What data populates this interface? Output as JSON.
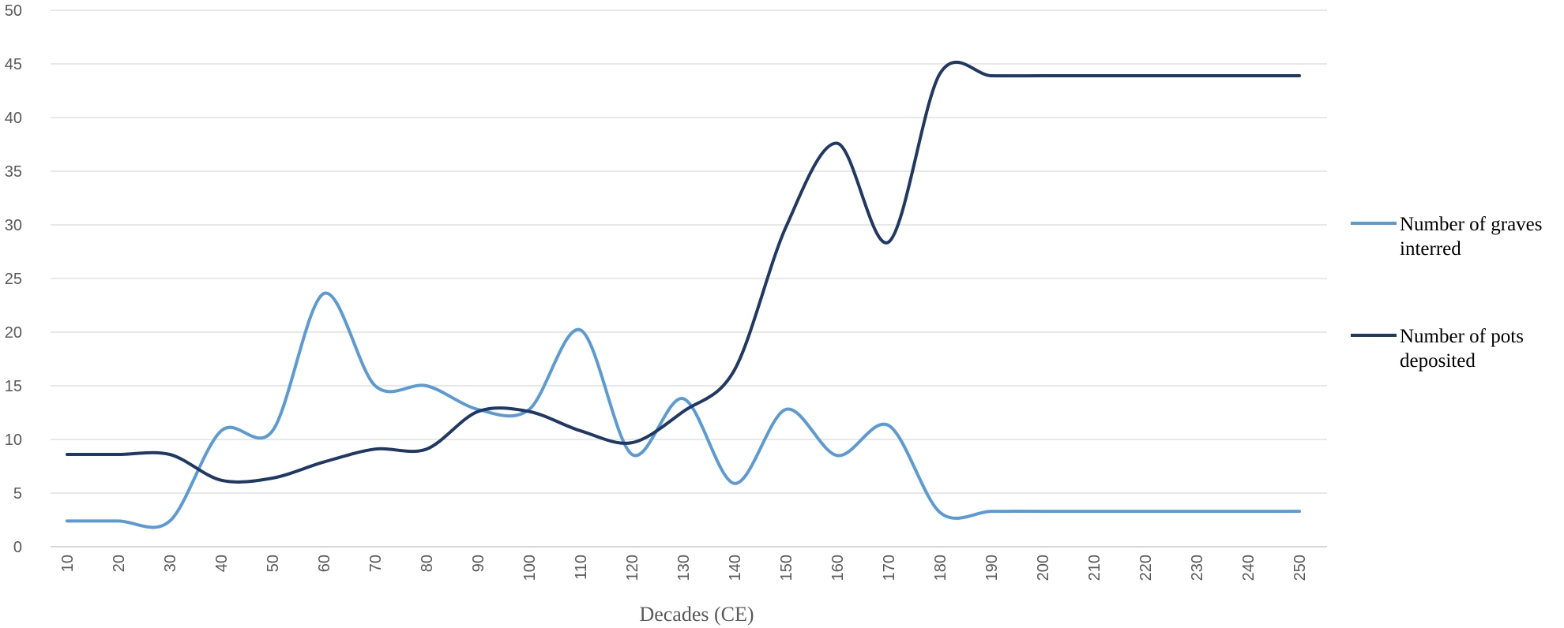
{
  "chart_data": {
    "type": "line",
    "title": "",
    "xlabel": "Decades (CE)",
    "ylabel": "",
    "ylim": [
      0,
      50
    ],
    "y_ticks": [
      "0",
      "5",
      "10",
      "15",
      "20",
      "25",
      "30",
      "35",
      "40",
      "45",
      "50"
    ],
    "categories": [
      "10",
      "20",
      "30",
      "40",
      "50",
      "60",
      "70",
      "80",
      "90",
      "100",
      "110",
      "120",
      "130",
      "140",
      "150",
      "160",
      "170",
      "180",
      "190",
      "200",
      "210",
      "220",
      "230",
      "240",
      "250"
    ],
    "grid": true,
    "legend_position": "right",
    "series": [
      {
        "name": [
          "Number of graves",
          "interred"
        ],
        "color": "#5b9bd5",
        "values": [
          2.4,
          2.4,
          2.4,
          10.8,
          10.8,
          23.6,
          15.0,
          15.0,
          12.8,
          12.8,
          20.2,
          8.6,
          13.8,
          5.9,
          12.8,
          8.5,
          11.3,
          3.2,
          3.3,
          3.3,
          3.3,
          3.3,
          3.3,
          3.3,
          3.3
        ]
      },
      {
        "name": [
          "Number of pots",
          "deposited"
        ],
        "color": "#1f3864",
        "values": [
          8.6,
          8.6,
          8.6,
          6.2,
          6.4,
          7.9,
          9.1,
          9.1,
          12.6,
          12.6,
          10.8,
          9.7,
          12.6,
          16.5,
          29.8,
          37.6,
          28.4,
          44.1,
          43.9,
          43.9,
          43.9,
          43.9,
          43.9,
          43.9,
          43.9
        ]
      }
    ]
  }
}
